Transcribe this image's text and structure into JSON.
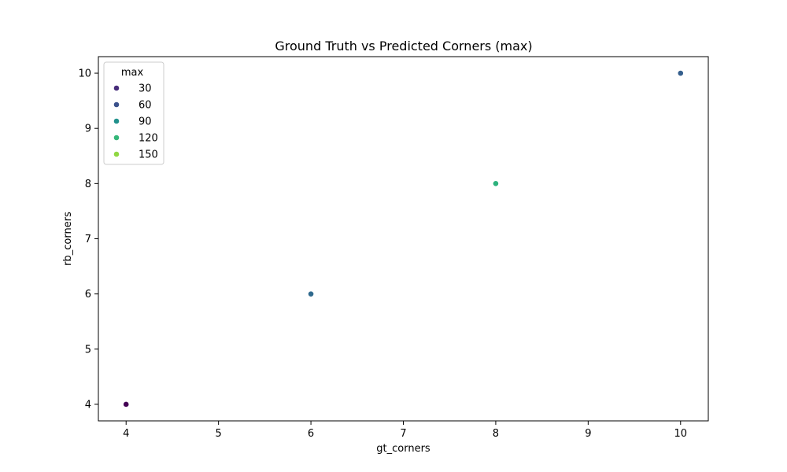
{
  "chart_data": {
    "type": "scatter",
    "title": "Ground Truth vs Predicted Corners (max)",
    "xlabel": "gt_corners",
    "ylabel": "rb_corners",
    "xlim": [
      3.7,
      10.3
    ],
    "ylim": [
      3.7,
      10.3
    ],
    "xticks": [
      4,
      5,
      6,
      7,
      8,
      9,
      10
    ],
    "yticks": [
      4,
      5,
      6,
      7,
      8,
      9,
      10
    ],
    "grid": false,
    "legend": {
      "title": "max",
      "placement": "upper-left",
      "entries": [
        {
          "label": "30",
          "color": "#472c7a"
        },
        {
          "label": "60",
          "color": "#3b518b"
        },
        {
          "label": "90",
          "color": "#21918c"
        },
        {
          "label": "120",
          "color": "#35b779"
        },
        {
          "label": "150",
          "color": "#90d743"
        }
      ]
    },
    "points": [
      {
        "x": 4,
        "y": 4,
        "hue": 10,
        "color": "#440154"
      },
      {
        "x": 6,
        "y": 6,
        "hue": 55,
        "color": "#306a8e"
      },
      {
        "x": 8,
        "y": 8,
        "hue": 120,
        "color": "#2db27d"
      },
      {
        "x": 10,
        "y": 10,
        "hue": 45,
        "color": "#355f8d"
      }
    ]
  }
}
